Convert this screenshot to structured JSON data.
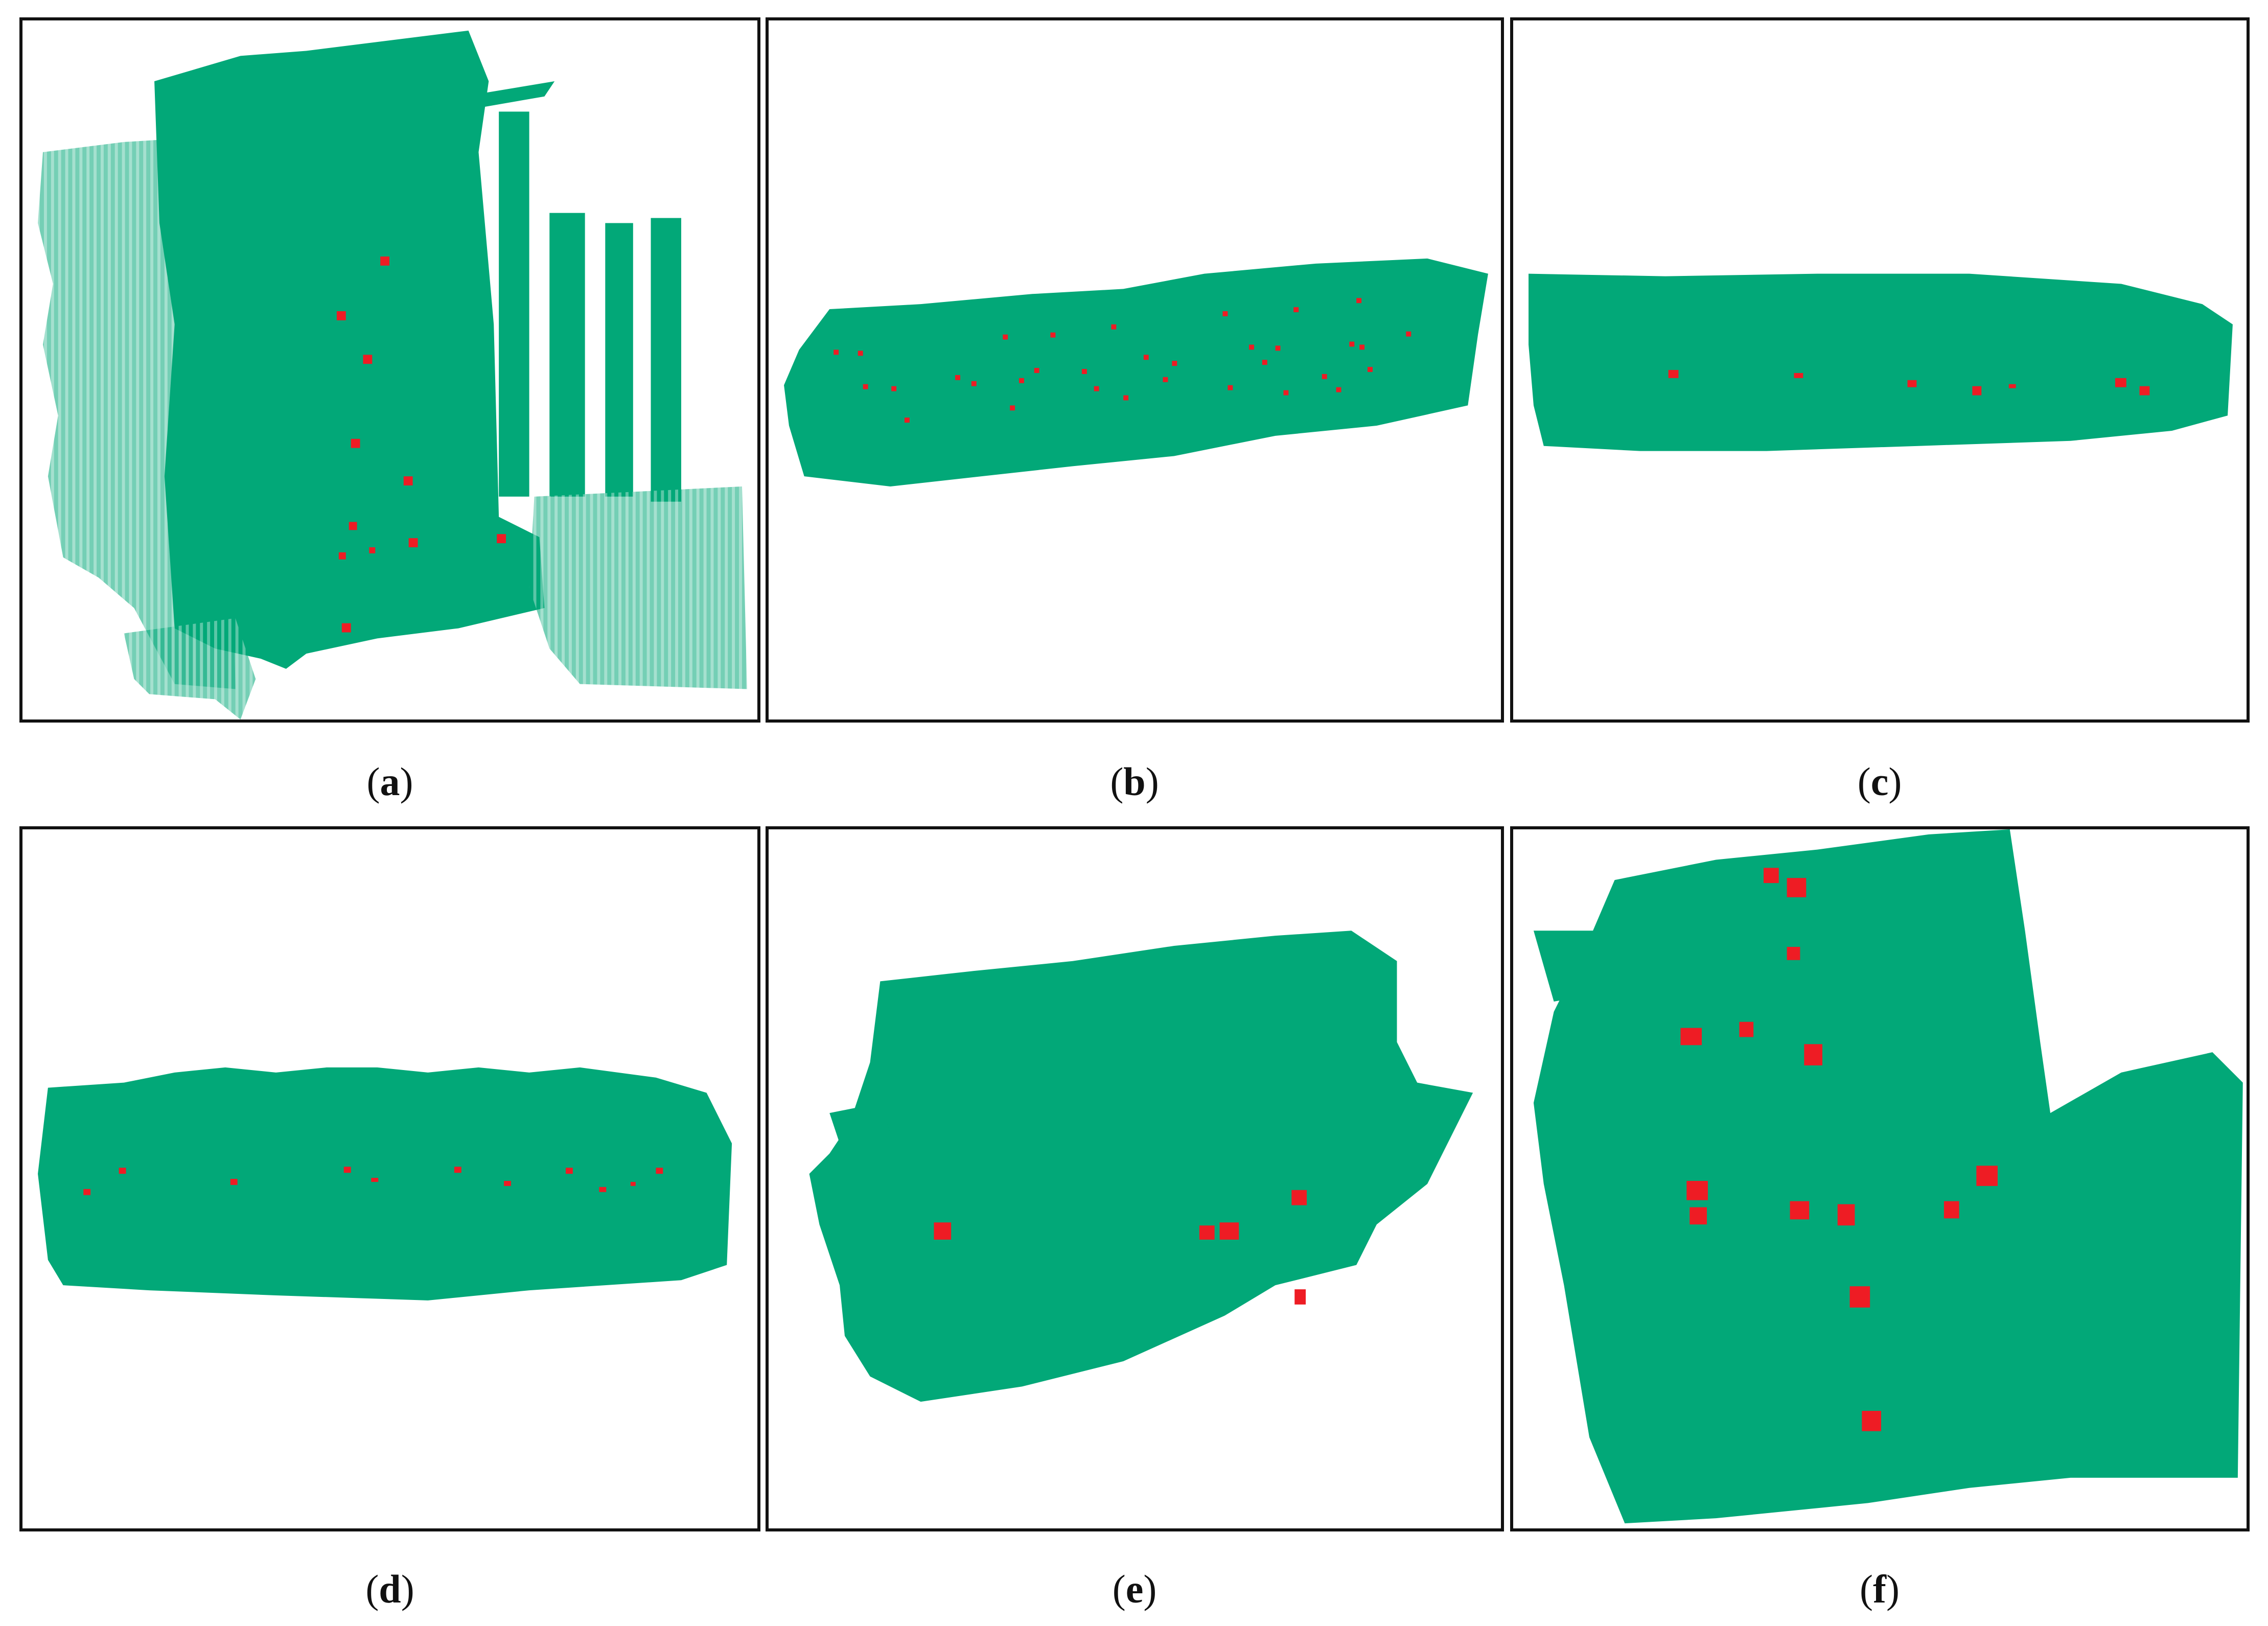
{
  "colors": {
    "cloud": "#02a878",
    "marker": "#ee1c24",
    "frame": "#111111",
    "background": "#ffffff"
  },
  "panels": [
    {
      "label": "a"
    },
    {
      "label": "b"
    },
    {
      "label": "c"
    },
    {
      "label": "d"
    },
    {
      "label": "e"
    },
    {
      "label": "f"
    }
  ]
}
